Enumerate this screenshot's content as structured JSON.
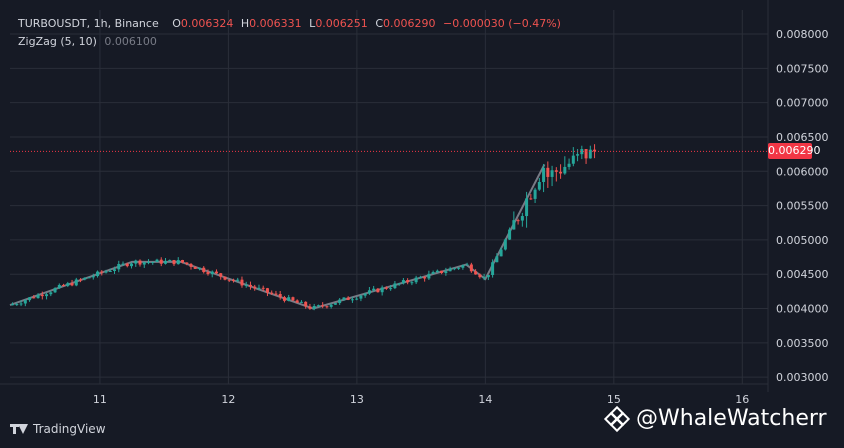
{
  "legend": {
    "symbol": "TURBOUSDT, 1h, Binance",
    "open_label": "O",
    "open_value": "0.006324",
    "high_label": "H",
    "high_value": "0.006331",
    "low_label": "L",
    "low_value": "0.006251",
    "close_label": "C",
    "close_value": "0.006290",
    "change_value": "−0.000030 (−0.47%)",
    "indicator": "ZigZag (5, 10)",
    "indicator_value": "0.006100"
  },
  "last_price_label": "0.006290",
  "brand_text": "TradingView",
  "watermark_text": "@WhaleWatcherr",
  "colors": {
    "background": "#161a25",
    "grid": "#2a2e39",
    "up": "#26a69a",
    "down": "#ef5350",
    "zigzag": "#787b86",
    "price_line": "#f23645"
  },
  "chart_data": {
    "type": "candlestick",
    "x_tick_labels": [
      "11",
      "12",
      "13",
      "14",
      "15",
      "16"
    ],
    "y_tick_labels": [
      "0.008000",
      "0.007500",
      "0.007000",
      "0.006500",
      "0.006000",
      "0.005500",
      "0.005000",
      "0.004500",
      "0.004000",
      "0.003500",
      "0.003000"
    ],
    "ylim": [
      0.0029,
      0.00835
    ],
    "xlim": [
      10.3,
      16.2
    ],
    "last_price": 0.00629,
    "zigzag": {
      "x": [
        10.3,
        11.25,
        11.63,
        12.66,
        13.85,
        14.0,
        14.46
      ],
      "y": [
        0.00405,
        0.00468,
        0.00468,
        0.004,
        0.00464,
        0.00443,
        0.0061
      ]
    }
  }
}
